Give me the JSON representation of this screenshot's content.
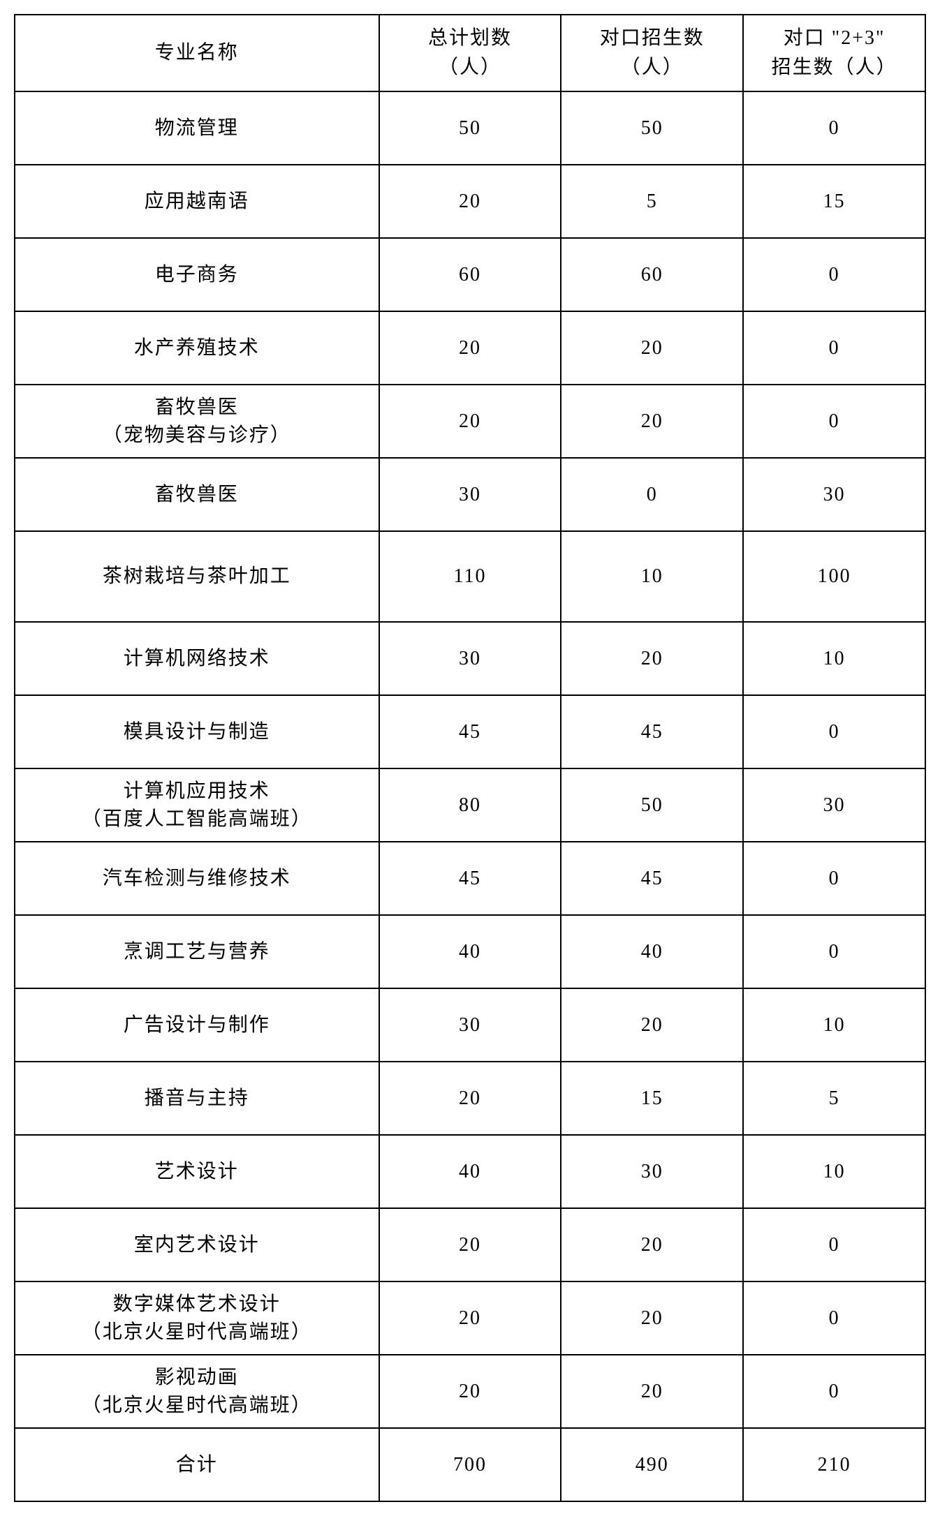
{
  "table": {
    "columns": [
      "专业名称",
      "总计划数\n（人）",
      "对口招生数\n（人）",
      "对口 \"2+3\"\n招生数（人）"
    ],
    "rows": [
      {
        "name": "物流管理",
        "total": "50",
        "direct": "50",
        "plan23": "0"
      },
      {
        "name": "应用越南语",
        "total": "20",
        "direct": "5",
        "plan23": "15"
      },
      {
        "name": "电子商务",
        "total": "60",
        "direct": "60",
        "plan23": "0"
      },
      {
        "name": "水产养殖技术",
        "total": "20",
        "direct": "20",
        "plan23": "0"
      },
      {
        "name": "畜牧兽医\n（宠物美容与诊疗）",
        "total": "20",
        "direct": "20",
        "plan23": "0"
      },
      {
        "name": "畜牧兽医",
        "total": "30",
        "direct": "0",
        "plan23": "30"
      },
      {
        "name": "茶树栽培与茶叶加工",
        "total": "110",
        "direct": "10",
        "plan23": "100"
      },
      {
        "name": "计算机网络技术",
        "total": "30",
        "direct": "20",
        "plan23": "10"
      },
      {
        "name": "模具设计与制造",
        "total": "45",
        "direct": "45",
        "plan23": "0"
      },
      {
        "name": "计算机应用技术\n（百度人工智能高端班）",
        "total": "80",
        "direct": "50",
        "plan23": "30"
      },
      {
        "name": "汽车检测与维修技术",
        "total": "45",
        "direct": "45",
        "plan23": "0"
      },
      {
        "name": "烹调工艺与营养",
        "total": "40",
        "direct": "40",
        "plan23": "0"
      },
      {
        "name": "广告设计与制作",
        "total": "30",
        "direct": "20",
        "plan23": "10"
      },
      {
        "name": "播音与主持",
        "total": "20",
        "direct": "15",
        "plan23": "5"
      },
      {
        "name": "艺术设计",
        "total": "40",
        "direct": "30",
        "plan23": "10"
      },
      {
        "name": "室内艺术设计",
        "total": "20",
        "direct": "20",
        "plan23": "0"
      },
      {
        "name": "数字媒体艺术设计\n（北京火星时代高端班）",
        "total": "20",
        "direct": "20",
        "plan23": "0"
      },
      {
        "name": "影视动画\n（北京火星时代高端班）",
        "total": "20",
        "direct": "20",
        "plan23": "0"
      },
      {
        "name": "合计",
        "total": "700",
        "direct": "490",
        "plan23": "210"
      }
    ],
    "styling": {
      "border_color": "#000000",
      "border_width": 2,
      "background_color": "#ffffff",
      "text_color": "#000000",
      "font_size": 28,
      "font_family": "SimSun",
      "letter_spacing": 2,
      "header_row_height": 110,
      "body_row_height": 105,
      "tall_row_height": 130,
      "short_row_height": 90
    }
  }
}
